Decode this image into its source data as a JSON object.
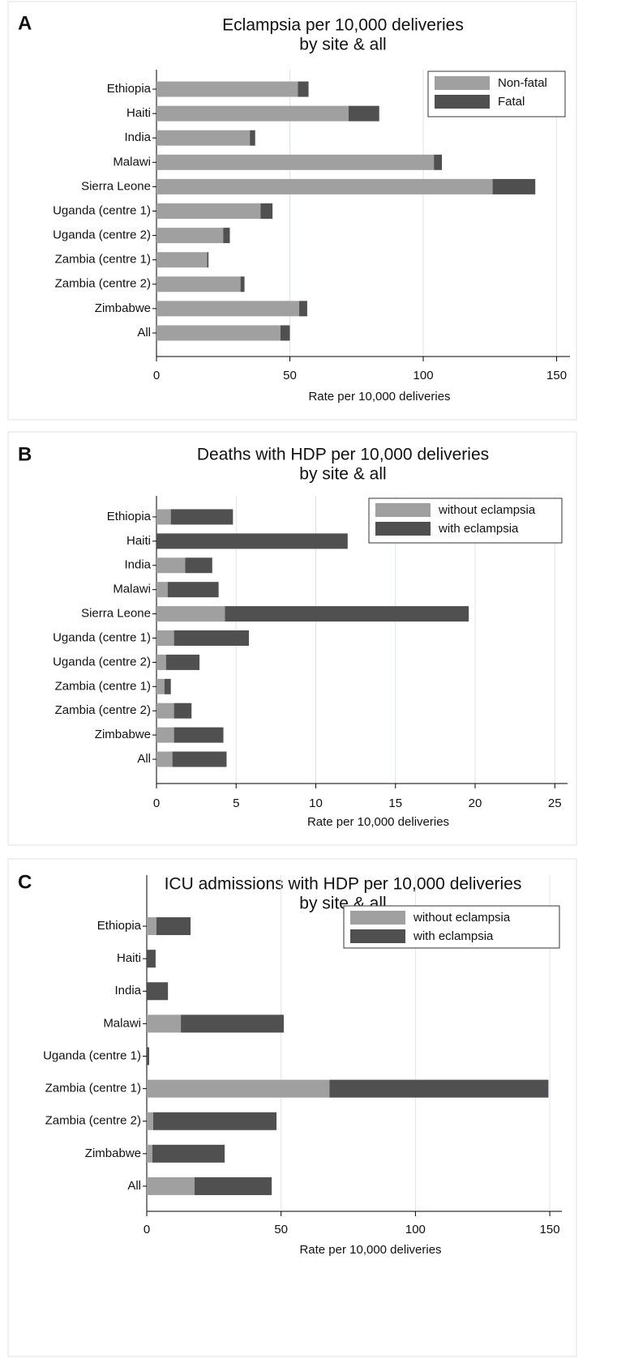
{
  "chart_data": [
    {
      "type": "bar",
      "orientation": "horizontal",
      "stacked": true,
      "label": "A",
      "title": [
        "Eclampsia per 10,000 deliveries",
        "by site & all"
      ],
      "x_label": "Rate per 10,000 deliveries",
      "categories": [
        "Ethiopia",
        "Haiti",
        "India",
        "Malawi",
        "Sierra Leone",
        "Uganda (centre 1)",
        "Uganda (centre 2)",
        "Zambia (centre 1)",
        "Zambia (centre 2)",
        "Zimbabwe",
        "All"
      ],
      "series": [
        {
          "name": "Non-fatal",
          "color": "#a0a0a0",
          "values": [
            53,
            72,
            35,
            104,
            126,
            39,
            25,
            19,
            31.5,
            53.5,
            46.5
          ]
        },
        {
          "name": "Fatal",
          "color": "#505050",
          "values": [
            4,
            11.5,
            2,
            3,
            16,
            4.5,
            2.5,
            0.5,
            1.5,
            3,
            3.5
          ]
        }
      ],
      "xlim": [
        0,
        155
      ],
      "xticks": [
        0,
        50,
        100,
        150
      ],
      "grid": true,
      "legend": "top-right"
    },
    {
      "type": "bar",
      "orientation": "horizontal",
      "stacked": true,
      "label": "B",
      "title": [
        "Deaths with HDP per 10,000 deliveries",
        "by site & all"
      ],
      "x_label": "Rate per 10,000 deliveries",
      "categories": [
        "Ethiopia",
        "Haiti",
        "India",
        "Malawi",
        "Sierra Leone",
        "Uganda (centre 1)",
        "Uganda (centre 2)",
        "Zambia (centre 1)",
        "Zambia (centre 2)",
        "Zimbabwe",
        "All"
      ],
      "series": [
        {
          "name": "without eclampsia",
          "color": "#a0a0a0",
          "values": [
            0.9,
            0,
            1.8,
            0.7,
            4.3,
            1.1,
            0.6,
            0.5,
            1.1,
            1.1,
            1.0
          ]
        },
        {
          "name": "with eclampsia",
          "color": "#505050",
          "values": [
            3.9,
            12.0,
            1.7,
            3.2,
            15.3,
            4.7,
            2.1,
            0.4,
            1.1,
            3.1,
            3.4
          ]
        }
      ],
      "xlim": [
        0,
        25.8
      ],
      "xticks": [
        0,
        5,
        10,
        15,
        20,
        25
      ],
      "grid": true,
      "legend": "top-right"
    },
    {
      "type": "bar",
      "orientation": "horizontal",
      "stacked": true,
      "label": "C",
      "title": [
        "ICU admissions with HDP per 10,000 deliveries",
        "by site & all"
      ],
      "x_label": "Rate per 10,000 deliveries",
      "categories": [
        "Ethiopia",
        "Haiti",
        "India",
        "Malawi",
        "Uganda (centre 1)",
        "Zambia (centre 1)",
        "Zambia (centre 2)",
        "Zimbabwe",
        "All"
      ],
      "series": [
        {
          "name": "without eclampsia",
          "color": "#a0a0a0",
          "values": [
            3.6,
            0,
            0,
            12.7,
            0,
            68,
            2.4,
            2.1,
            17.8
          ]
        },
        {
          "name": "with eclampsia",
          "color": "#505050",
          "values": [
            12.7,
            3.3,
            7.9,
            38.3,
            0.9,
            81.5,
            45.9,
            26.9,
            28.7
          ]
        }
      ],
      "xlim": [
        0,
        154.5
      ],
      "xticks": [
        0,
        50,
        100,
        150
      ],
      "grid": true,
      "legend": "top-right"
    }
  ]
}
